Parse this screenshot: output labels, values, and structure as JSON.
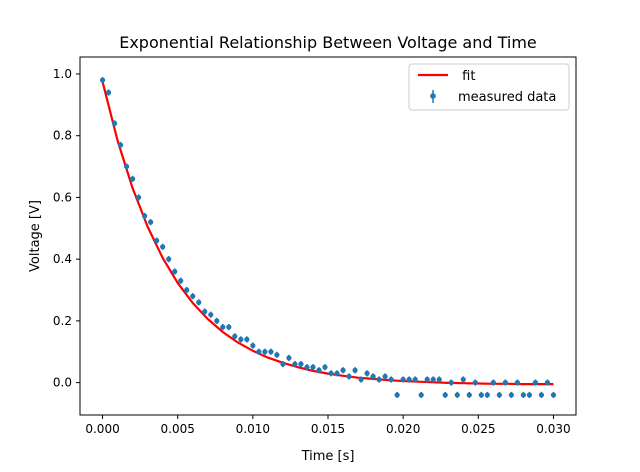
{
  "chart_data": {
    "type": "scatter",
    "title": "Exponential Relationship Between Voltage and Time",
    "xlabel": "Time [s]",
    "ylabel": "Voltage [V]",
    "xlim": [
      -0.0015,
      0.0315
    ],
    "ylim": [
      -0.105,
      1.055
    ],
    "xticks": [
      0.0,
      0.005,
      0.01,
      0.015,
      0.02,
      0.025,
      0.03
    ],
    "xtick_labels": [
      "0.000",
      "0.005",
      "0.010",
      "0.015",
      "0.020",
      "0.025",
      "0.030"
    ],
    "yticks": [
      0.0,
      0.2,
      0.4,
      0.6,
      0.8,
      1.0
    ],
    "ytick_labels": [
      "0.0",
      "0.2",
      "0.4",
      "0.6",
      "0.8",
      "1.0"
    ],
    "grid": false,
    "legend": {
      "placement": "upper-right",
      "entries": [
        {
          "label": " fit",
          "kind": "line",
          "color": "#ff0000"
        },
        {
          "label": "measured data",
          "kind": "errorbar-point",
          "color": "#1f77b4"
        }
      ]
    },
    "series": [
      {
        "name": "measured data",
        "kind": "errorbar-scatter",
        "color": "#1f77b4",
        "y_error": 0.01,
        "points_xy": [
          [
            0.0,
            0.98
          ],
          [
            0.0004,
            0.94
          ],
          [
            0.0008,
            0.84
          ],
          [
            0.0012,
            0.77
          ],
          [
            0.0016,
            0.7
          ],
          [
            0.002,
            0.66
          ],
          [
            0.0024,
            0.6
          ],
          [
            0.0028,
            0.54
          ],
          [
            0.0032,
            0.52
          ],
          [
            0.0036,
            0.46
          ],
          [
            0.004,
            0.44
          ],
          [
            0.0044,
            0.4
          ],
          [
            0.0048,
            0.36
          ],
          [
            0.0052,
            0.33
          ],
          [
            0.0056,
            0.3
          ],
          [
            0.006,
            0.28
          ],
          [
            0.0064,
            0.26
          ],
          [
            0.0068,
            0.23
          ],
          [
            0.0072,
            0.22
          ],
          [
            0.0076,
            0.2
          ],
          [
            0.008,
            0.18
          ],
          [
            0.0084,
            0.18
          ],
          [
            0.0088,
            0.15
          ],
          [
            0.0092,
            0.14
          ],
          [
            0.0096,
            0.14
          ],
          [
            0.01,
            0.12
          ],
          [
            0.0104,
            0.1
          ],
          [
            0.0108,
            0.1
          ],
          [
            0.0112,
            0.1
          ],
          [
            0.0116,
            0.09
          ],
          [
            0.012,
            0.06
          ],
          [
            0.0124,
            0.08
          ],
          [
            0.0128,
            0.06
          ],
          [
            0.0132,
            0.06
          ],
          [
            0.0136,
            0.05
          ],
          [
            0.014,
            0.05
          ],
          [
            0.0144,
            0.04
          ],
          [
            0.0148,
            0.05
          ],
          [
            0.0152,
            0.03
          ],
          [
            0.0156,
            0.03
          ],
          [
            0.016,
            0.04
          ],
          [
            0.0164,
            0.02
          ],
          [
            0.0168,
            0.04
          ],
          [
            0.0172,
            0.01
          ],
          [
            0.0176,
            0.03
          ],
          [
            0.018,
            0.02
          ],
          [
            0.0184,
            0.01
          ],
          [
            0.0188,
            0.02
          ],
          [
            0.0192,
            0.01
          ],
          [
            0.0196,
            -0.04
          ],
          [
            0.02,
            0.01
          ],
          [
            0.0204,
            0.01
          ],
          [
            0.0208,
            0.01
          ],
          [
            0.0212,
            -0.04
          ],
          [
            0.0216,
            0.01
          ],
          [
            0.022,
            0.01
          ],
          [
            0.0224,
            0.01
          ],
          [
            0.0228,
            -0.04
          ],
          [
            0.0232,
            0.0
          ],
          [
            0.0236,
            -0.04
          ],
          [
            0.024,
            0.01
          ],
          [
            0.0244,
            -0.04
          ],
          [
            0.0248,
            0.0
          ],
          [
            0.0252,
            -0.04
          ],
          [
            0.0256,
            -0.04
          ],
          [
            0.026,
            0.0
          ],
          [
            0.0264,
            -0.04
          ],
          [
            0.0268,
            0.0
          ],
          [
            0.0272,
            -0.04
          ],
          [
            0.0276,
            0.0
          ],
          [
            0.028,
            -0.04
          ],
          [
            0.0284,
            -0.04
          ],
          [
            0.0288,
            0.0
          ],
          [
            0.0292,
            -0.04
          ],
          [
            0.0296,
            0.0
          ],
          [
            0.03,
            -0.04
          ]
        ]
      },
      {
        "name": " fit",
        "kind": "line",
        "color": "#ff0000",
        "x": [
          0.0,
          0.001,
          0.002,
          0.003,
          0.004,
          0.005,
          0.006,
          0.007,
          0.008,
          0.009,
          0.01,
          0.011,
          0.012,
          0.013,
          0.014,
          0.015,
          0.016,
          0.017,
          0.018,
          0.019,
          0.02,
          0.021,
          0.022,
          0.023,
          0.024,
          0.025,
          0.026,
          0.027,
          0.028,
          0.029,
          0.03
        ],
        "y": [
          0.975,
          0.784,
          0.63,
          0.505,
          0.404,
          0.323,
          0.258,
          0.206,
          0.164,
          0.13,
          0.103,
          0.081,
          0.064,
          0.05,
          0.038,
          0.029,
          0.022,
          0.016,
          0.012,
          0.008,
          0.005,
          0.003,
          0.001,
          -0.001,
          -0.002,
          -0.003,
          -0.004,
          -0.004,
          -0.005,
          -0.005,
          -0.005
        ]
      }
    ]
  }
}
